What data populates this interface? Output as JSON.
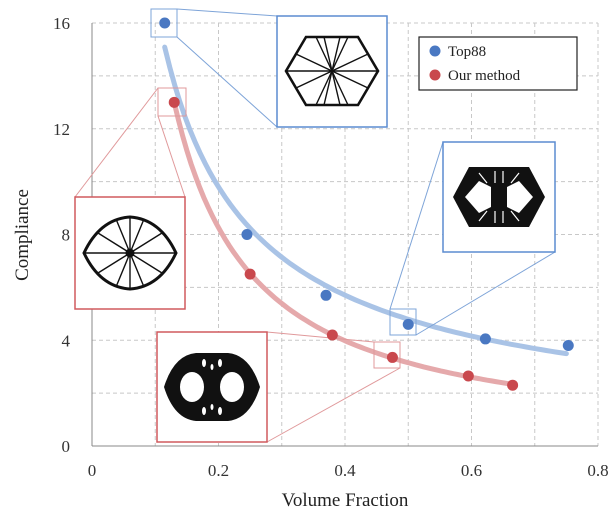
{
  "chart_data": {
    "type": "scatter",
    "xlabel": "Volume Fraction",
    "ylabel": "Compliance",
    "xlim": [
      0,
      0.8
    ],
    "ylim": [
      0,
      16
    ],
    "xticks": [
      "0",
      "0.2",
      "0.4",
      "0.6",
      "0.8"
    ],
    "yticks": [
      "0",
      "4",
      "8",
      "12",
      "16"
    ],
    "grid": "dashed",
    "legend_position": "top-right",
    "series": [
      {
        "name": "Top88",
        "color": "#4a78c2",
        "fit_color": "#a9c3e6",
        "points": [
          {
            "x": 0.115,
            "y": 16.0
          },
          {
            "x": 0.245,
            "y": 8.0
          },
          {
            "x": 0.37,
            "y": 5.7
          },
          {
            "x": 0.5,
            "y": 4.6
          },
          {
            "x": 0.622,
            "y": 4.05
          },
          {
            "x": 0.753,
            "y": 3.8
          }
        ],
        "fit_x": [
          0.115,
          0.75
        ]
      },
      {
        "name": "Our method",
        "color": "#c9484d",
        "fit_color": "#e5a9ab",
        "points": [
          {
            "x": 0.13,
            "y": 13.0
          },
          {
            "x": 0.25,
            "y": 6.5
          },
          {
            "x": 0.38,
            "y": 4.2
          },
          {
            "x": 0.475,
            "y": 3.35
          },
          {
            "x": 0.595,
            "y": 2.65
          },
          {
            "x": 0.665,
            "y": 2.3
          }
        ],
        "fit_x": [
          0.13,
          0.665
        ]
      }
    ]
  }
}
